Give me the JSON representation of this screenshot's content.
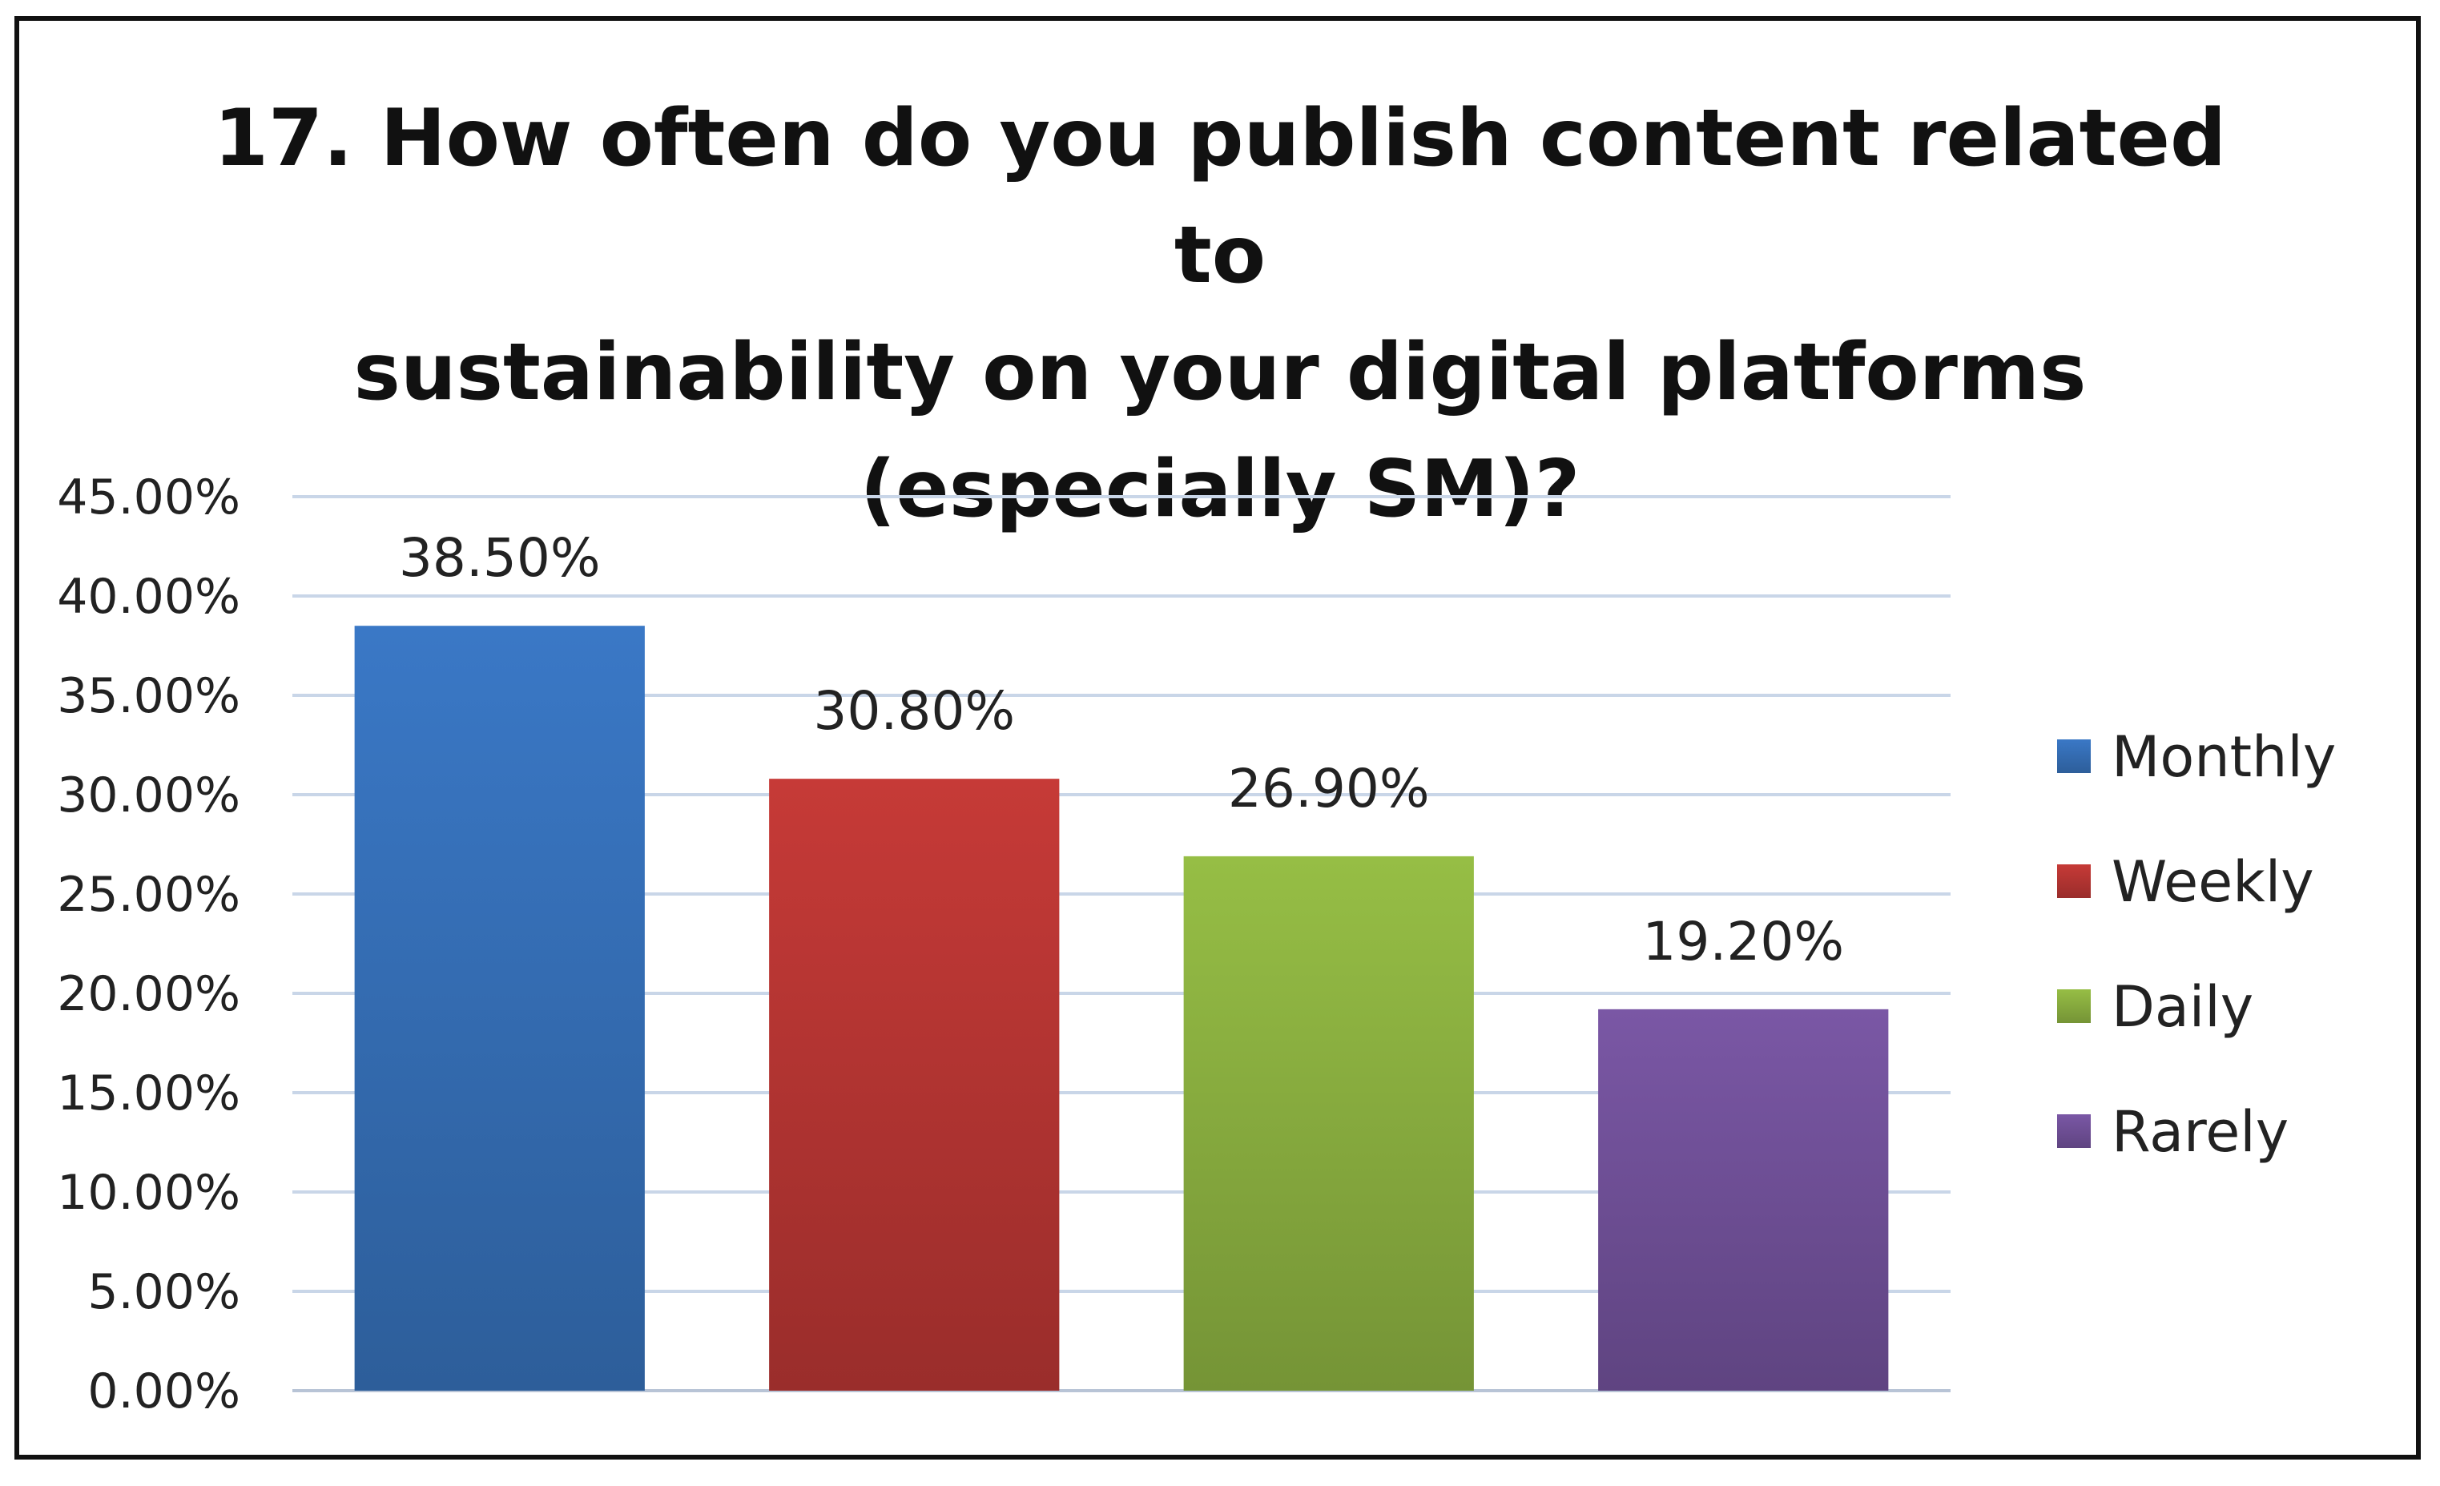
{
  "chart_data": {
    "type": "bar",
    "title_lines": [
      "17. How often do you publish content related to",
      "sustainability on your digital platforms",
      "(especially SM)?"
    ],
    "categories": [
      "Monthly",
      "Weekly",
      "Daily",
      "Rarely"
    ],
    "values": [
      38.5,
      30.8,
      26.9,
      19.2
    ],
    "data_labels": [
      "38.50%",
      "30.80%",
      "26.90%",
      "19.20%"
    ],
    "colors": [
      "#3a78c6",
      "#c63a37",
      "#96be45",
      "#7a57a5"
    ],
    "ylim": [
      0,
      45
    ],
    "y_ticks": [
      {
        "value": 0,
        "label": "0.00%"
      },
      {
        "value": 5,
        "label": "5.00%"
      },
      {
        "value": 10,
        "label": "10.00%"
      },
      {
        "value": 15,
        "label": "15.00%"
      },
      {
        "value": 20,
        "label": "20.00%"
      },
      {
        "value": 25,
        "label": "25.00%"
      },
      {
        "value": 30,
        "label": "30.00%"
      },
      {
        "value": 35,
        "label": "35.00%"
      },
      {
        "value": 40,
        "label": "40.00%"
      },
      {
        "value": 45,
        "label": "45.00%"
      }
    ],
    "grid": true,
    "legend": {
      "position": "right",
      "entries": [
        "Monthly",
        "Weekly",
        "Daily",
        "Rarely"
      ]
    }
  }
}
